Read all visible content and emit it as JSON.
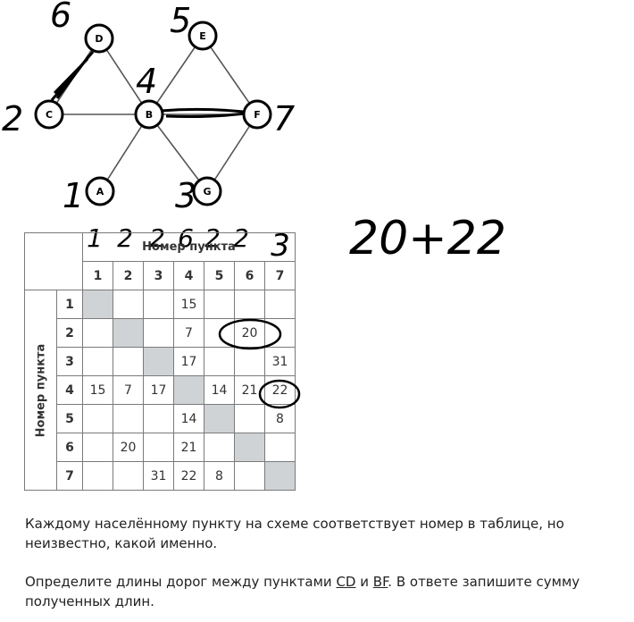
{
  "graph": {
    "nodes": [
      {
        "id": "D",
        "label": "D",
        "hw": "6"
      },
      {
        "id": "E",
        "label": "E",
        "hw": "5"
      },
      {
        "id": "C",
        "label": "C",
        "hw": "2"
      },
      {
        "id": "B",
        "label": "B",
        "hw": "4"
      },
      {
        "id": "F",
        "label": "F",
        "hw": "7"
      },
      {
        "id": "A",
        "label": "A",
        "hw": "1"
      },
      {
        "id": "G",
        "label": "G",
        "hw": "3"
      }
    ],
    "edges": [
      [
        "D",
        "C"
      ],
      [
        "D",
        "B"
      ],
      [
        "C",
        "B"
      ],
      [
        "B",
        "E"
      ],
      [
        "B",
        "F"
      ],
      [
        "E",
        "F"
      ],
      [
        "B",
        "A"
      ],
      [
        "B",
        "G"
      ],
      [
        "G",
        "F"
      ]
    ]
  },
  "handwritten": {
    "sum": "20+22",
    "column_annotations": [
      "1",
      "2",
      "2",
      "6",
      "2",
      "2",
      "3"
    ]
  },
  "table": {
    "header_title": "Номер пункта",
    "row_title": "Номер пункта",
    "columns": [
      "1",
      "2",
      "3",
      "4",
      "5",
      "6",
      "7"
    ],
    "rows": [
      {
        "num": "1",
        "cells": [
          "",
          "",
          "",
          "15",
          "",
          "",
          ""
        ]
      },
      {
        "num": "2",
        "cells": [
          "",
          "",
          "",
          "7",
          "",
          "20",
          ""
        ]
      },
      {
        "num": "3",
        "cells": [
          "",
          "",
          "",
          "17",
          "",
          "",
          "31"
        ]
      },
      {
        "num": "4",
        "cells": [
          "15",
          "7",
          "17",
          "",
          "14",
          "21",
          "22"
        ]
      },
      {
        "num": "5",
        "cells": [
          "",
          "",
          "",
          "14",
          "",
          "",
          "8"
        ]
      },
      {
        "num": "6",
        "cells": [
          "",
          "20",
          "",
          "21",
          "",
          "",
          ""
        ]
      },
      {
        "num": "7",
        "cells": [
          "",
          "",
          "31",
          "22",
          "8",
          "",
          ""
        ]
      }
    ],
    "circled": [
      "2-6",
      "4-7"
    ]
  },
  "text": {
    "p1": "Каждому населённому пункту на схеме соответствует номер в таблице, но неизвестно, какой именно.",
    "p2_a": "Определите длины дорог между пунктами ",
    "p2_cd": "CD",
    "p2_and": " и ",
    "p2_bf": "BF",
    "p2_b": ". В ответе запишите сумму полученных длин."
  }
}
